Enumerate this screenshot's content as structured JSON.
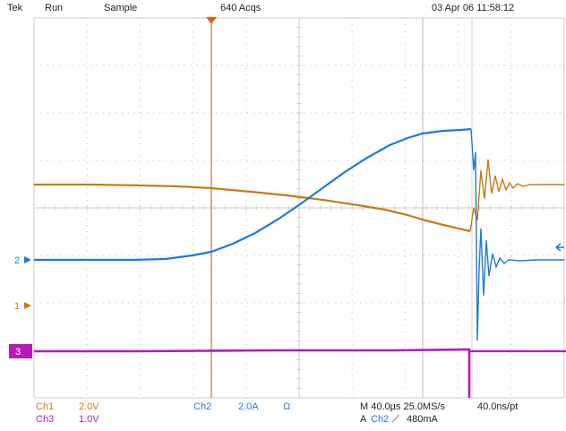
{
  "header": {
    "brand": "Tek",
    "state": "Run",
    "mode": "Sample",
    "acqs": "640 Acqs",
    "datetime": "03 Apr 06 11:58:12"
  },
  "markers": {
    "ch2": "2",
    "ch1": "1",
    "ch3": "3"
  },
  "footer": {
    "ch1_label": "Ch1",
    "ch1_scale": "2.0V",
    "ch3_label": "Ch3",
    "ch3_scale": "1.0V",
    "ch2_label": "Ch2",
    "ch2_scale": "2.0A",
    "ch2_unit": "Ω",
    "timebase": "M 40.0µs 25.0MS/s",
    "trig_prefix": "A",
    "trig_channel": "Ch2",
    "trig_symbol": "⟋",
    "trig_level": "480mA",
    "resolution": "40.0ns/pt"
  },
  "colors": {
    "ch1": "#c87a12",
    "ch2": "#1f79d6",
    "ch3": "#b21db7",
    "grid": "#c8c8c8",
    "cursor": "#b98a5a"
  }
}
